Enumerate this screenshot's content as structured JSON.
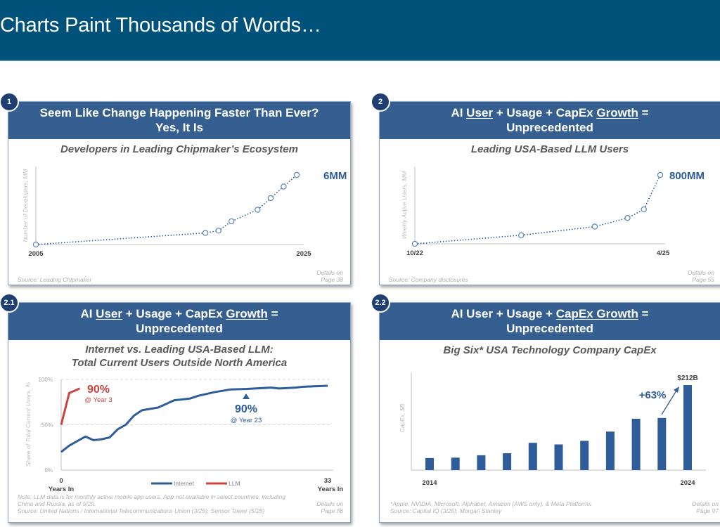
{
  "header": {
    "title": "Charts Paint Thousands of Words…"
  },
  "panels": [
    {
      "badge": "1",
      "title_line1": [
        {
          "t": "Seem Like Change Happening Faster Than Ever?"
        }
      ],
      "title_line2": "Yes, It Is",
      "subtitle": [
        "Developers in Leading Chipmaker’s Ecosystem"
      ],
      "source": [
        "Source: Leading Chipmaker"
      ],
      "details": [
        "Details on",
        "Page 38"
      ]
    },
    {
      "badge": "2",
      "title_line1": [
        {
          "t": "AI "
        },
        {
          "t": "User",
          "u": true
        },
        {
          "t": " + Usage + CapEx "
        },
        {
          "t": "Growth",
          "u": true
        },
        {
          "t": " ="
        }
      ],
      "title_line2": "Unprecedented",
      "subtitle": [
        "Leading USA-Based LLM Users"
      ],
      "source": [
        "Source: Company disclosures"
      ],
      "details": [
        "Details on",
        "Page 55"
      ]
    },
    {
      "badge": "2.1",
      "title_line1": [
        {
          "t": "AI "
        },
        {
          "t": "User",
          "u": true
        },
        {
          "t": " + Usage + CapEx "
        },
        {
          "t": "Growth",
          "u": true
        },
        {
          "t": " ="
        }
      ],
      "title_line2": "Unprecedented",
      "subtitle": [
        "Internet vs. Leading USA-Based LLM:",
        "Total Current Users Outside North America"
      ],
      "source": [
        "Note: LLM data is for monthly active mobile app users. App not available in select countries, including",
        "China and Russia, as of 5/25.",
        "Source: United Nations / International Telecommunications Union (3/25), Sensor Tower (5/25)"
      ],
      "details": [
        "Details on",
        "Page 56"
      ]
    },
    {
      "badge": "2.2",
      "title_line1": [
        {
          "t": "AI User + Usage + "
        },
        {
          "t": "CapEx Growth",
          "u": true
        },
        {
          "t": " ="
        }
      ],
      "title_line2": "Unprecedented",
      "subtitle": [
        "Big Six* USA Technology Company CapEx"
      ],
      "source": [
        "*Apple, NVIDIA, Microsoft, Alphabet, Amazon (AWS only), & Meta Platforms",
        "Source: Capital IQ (3/25), Morgan Stanley"
      ],
      "details": [
        "Details on",
        "Page 97"
      ]
    }
  ],
  "colors": {
    "header": "#00527a",
    "band": "#365f91",
    "series_blue": "#2f5d99",
    "series_red": "#c9433f"
  },
  "chart_data": [
    {
      "type": "line",
      "ylabel": "Number of Developers, MM",
      "xlim": [
        2005,
        2025
      ],
      "ylim": [
        0,
        6
      ],
      "x_tick_labels": [
        "2005",
        "2025"
      ],
      "line_style": "dotted",
      "markers": "hollow-circle",
      "x": [
        2005,
        2018,
        2019,
        2020,
        2022,
        2023,
        2024,
        2025
      ],
      "y": [
        0,
        1.0,
        1.2,
        2.0,
        3.0,
        4.0,
        5.0,
        6.0
      ],
      "end_label": "6MM"
    },
    {
      "type": "line",
      "ylabel": "Weekly Active Users, MM",
      "xlim": [
        "2022-10",
        "2025-04"
      ],
      "ylim": [
        0,
        800
      ],
      "x_tick_labels": [
        "10/22",
        "4/25"
      ],
      "line_style": "dotted",
      "markers": "hollow-circle",
      "x": [
        "2022-10",
        "2023-11",
        "2024-08",
        "2024-12",
        "2025-02",
        "2025-04"
      ],
      "y": [
        0,
        100,
        200,
        300,
        400,
        800
      ],
      "end_label": "800MM"
    },
    {
      "type": "line",
      "ylabel": "Share of Total Current Users, %",
      "xlim": [
        0,
        33
      ],
      "ylim": [
        0,
        100
      ],
      "grid": true,
      "y_tick_labels": [
        "100%",
        "50%",
        "0%"
      ],
      "x_tick_labels": [
        "0",
        "33"
      ],
      "x_axis_caption": "Years In",
      "legend": "bottom-center",
      "series": [
        {
          "name": "Internet",
          "x": [
            0,
            1,
            2,
            3,
            4,
            5,
            6,
            7,
            8,
            9,
            10,
            12,
            13,
            14,
            16,
            17,
            19,
            21,
            23,
            24,
            26,
            27,
            29,
            30,
            33
          ],
          "y": [
            20,
            27,
            32,
            37,
            33,
            34,
            36,
            45,
            50,
            60,
            66,
            69,
            73,
            77,
            79,
            82,
            86,
            89,
            89.5,
            90,
            91,
            90,
            91,
            92,
            93
          ]
        },
        {
          "name": "LLM",
          "x": [
            0,
            1,
            2.3
          ],
          "y": [
            50,
            85,
            90
          ]
        }
      ],
      "annotations": [
        {
          "value": "90%",
          "note": "@ Year 3",
          "series": "LLM"
        },
        {
          "value": "90%",
          "note": "@ Year 23",
          "series": "Internet"
        }
      ]
    },
    {
      "type": "bar",
      "ylabel": "CapEx, $B",
      "ylim": [
        0,
        212
      ],
      "categories": [
        "2014",
        "2015",
        "2016",
        "2017",
        "2018",
        "2019",
        "2020",
        "2021",
        "2022",
        "2023",
        "2024"
      ],
      "x_tick_labels": [
        "2014",
        "2024"
      ],
      "values": [
        30,
        31,
        37,
        42,
        68,
        64,
        73,
        96,
        128,
        130,
        212
      ],
      "data_label": "$212B",
      "growth_label": "+63%"
    }
  ]
}
